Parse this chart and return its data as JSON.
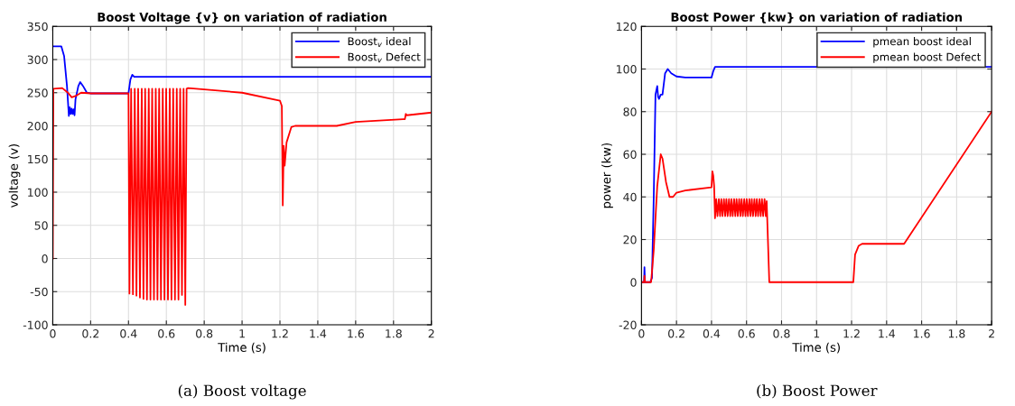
{
  "chart_data": [
    {
      "type": "line",
      "title": "Boost Voltage {v} on variation of radiation",
      "xlabel": "Time (s)",
      "ylabel": "voltage (v)",
      "annotations": [
        "(a) Boost voltage"
      ],
      "xlim": [
        0,
        2
      ],
      "ylim": [
        -100,
        350
      ],
      "xticks": [
        0,
        0.2,
        0.4,
        0.6,
        0.8,
        1,
        1.2,
        1.4,
        1.6,
        1.8,
        2
      ],
      "yticks": [
        -100,
        -50,
        0,
        50,
        100,
        150,
        200,
        250,
        300,
        350
      ],
      "grid": true,
      "legend": "top right",
      "line_style": "solid",
      "marker": "none",
      "series": [
        {
          "name": "Boost$_{v}$ ideal",
          "color": "#0000ff",
          "x": [
            0.003,
            0.045,
            0.06,
            0.075,
            0.085,
            0.09,
            0.095,
            0.1,
            0.105,
            0.11,
            0.115,
            0.12,
            0.135,
            0.145,
            0.16,
            0.18,
            0.2,
            0.4,
            0.41,
            0.42,
            0.43,
            2
          ],
          "values": [
            320,
            320,
            305,
            260,
            215,
            228,
            218,
            226,
            218,
            225,
            216,
            240,
            260,
            266,
            260,
            250,
            249,
            249,
            270,
            277,
            274,
            274
          ]
        },
        {
          "name": "Boost$_{v}$ Defect",
          "color": "#ff0000",
          "x": [
            0,
            0.003,
            0.05,
            0.08,
            0.1,
            0.12,
            0.15,
            0.2,
            0.4,
            0.405,
            0.414,
            0.4235,
            0.433,
            0.442,
            0.451,
            0.4605,
            0.47,
            0.479,
            0.488,
            0.4975,
            0.507,
            0.516,
            0.525,
            0.5345,
            0.544,
            0.553,
            0.562,
            0.5715,
            0.581,
            0.59,
            0.599,
            0.6085,
            0.618,
            0.627,
            0.636,
            0.6455,
            0.655,
            0.664,
            0.673,
            0.6825,
            0.691,
            0.7,
            0.707,
            0.715,
            1.0,
            1.2,
            1.21,
            1.215,
            1.22,
            1.225,
            1.235,
            1.26,
            1.28,
            1.5,
            1.6,
            1.85,
            1.86,
            1.865,
            1.87,
            2
          ],
          "values": [
            0,
            256,
            257,
            250,
            243,
            245,
            250,
            249,
            249,
            -53,
            256,
            -54,
            256,
            -56,
            256,
            -59,
            256,
            -61,
            256,
            -62,
            256,
            -62,
            256,
            -62,
            256,
            -62,
            256,
            -62,
            256,
            -62,
            256,
            -62,
            256,
            -62,
            256,
            -62,
            256,
            -62,
            256,
            -55,
            256,
            -70,
            256,
            257,
            250,
            238,
            230,
            80,
            170,
            140,
            175,
            198,
            200,
            200,
            206,
            210,
            210,
            218,
            216,
            220
          ]
        }
      ]
    },
    {
      "type": "line",
      "title": "Boost Power {kw} on variation of radiation",
      "xlabel": "Time (s)",
      "ylabel": "power (kw)",
      "annotations": [
        "(b) Boost Power"
      ],
      "xlim": [
        0,
        2
      ],
      "ylim": [
        -20,
        120
      ],
      "xticks": [
        0,
        0.2,
        0.4,
        0.6,
        0.8,
        1,
        1.2,
        1.4,
        1.6,
        1.8,
        2
      ],
      "yticks": [
        -20,
        0,
        20,
        40,
        60,
        80,
        100,
        120
      ],
      "grid": true,
      "legend": "top right",
      "line_style": "solid",
      "marker": "none",
      "series": [
        {
          "name": "pmean boost ideal",
          "color": "#0000ff",
          "x": [
            0,
            0.015,
            0.017,
            0.02,
            0.05,
            0.06,
            0.07,
            0.08,
            0.09,
            0.095,
            0.1,
            0.11,
            0.12,
            0.135,
            0.15,
            0.17,
            0.2,
            0.25,
            0.4,
            0.41,
            0.42,
            2
          ],
          "values": [
            0,
            0,
            7,
            0,
            0,
            2,
            40,
            88,
            92,
            87,
            86,
            88,
            88,
            98,
            100,
            98,
            96.5,
            96,
            96,
            99,
            101,
            101
          ]
        },
        {
          "name": "pmean boost Defect",
          "color": "#ff0000",
          "x": [
            0,
            0.015,
            0.017,
            0.02,
            0.055,
            0.07,
            0.09,
            0.11,
            0.12,
            0.14,
            0.16,
            0.18,
            0.2,
            0.25,
            0.4,
            0.405,
            0.41,
            0.415,
            0.42,
            0.427,
            0.434,
            0.442,
            0.449,
            0.456,
            0.463,
            0.471,
            0.478,
            0.485,
            0.492,
            0.5,
            0.507,
            0.514,
            0.521,
            0.529,
            0.536,
            0.543,
            0.55,
            0.558,
            0.565,
            0.572,
            0.579,
            0.587,
            0.594,
            0.601,
            0.608,
            0.616,
            0.623,
            0.63,
            0.637,
            0.645,
            0.652,
            0.659,
            0.666,
            0.674,
            0.681,
            0.688,
            0.695,
            0.703,
            0.71,
            0.715,
            0.73,
            1.21,
            1.22,
            1.24,
            1.26,
            1.5,
            2
          ],
          "values": [
            0,
            0,
            3,
            0,
            0,
            15,
            45,
            60,
            58,
            47,
            40,
            40,
            42,
            43,
            44.5,
            52,
            50,
            45,
            30,
            39,
            31,
            39,
            31,
            39,
            31,
            39,
            31,
            39,
            31,
            39,
            31,
            39,
            31,
            39,
            31,
            39,
            31,
            39,
            31,
            39,
            31,
            39,
            31,
            39,
            31,
            39,
            31,
            39,
            31,
            39,
            31,
            39,
            31,
            39,
            31,
            39,
            31,
            39,
            31,
            38,
            0,
            0,
            13,
            17,
            18,
            18,
            80
          ]
        }
      ]
    }
  ]
}
